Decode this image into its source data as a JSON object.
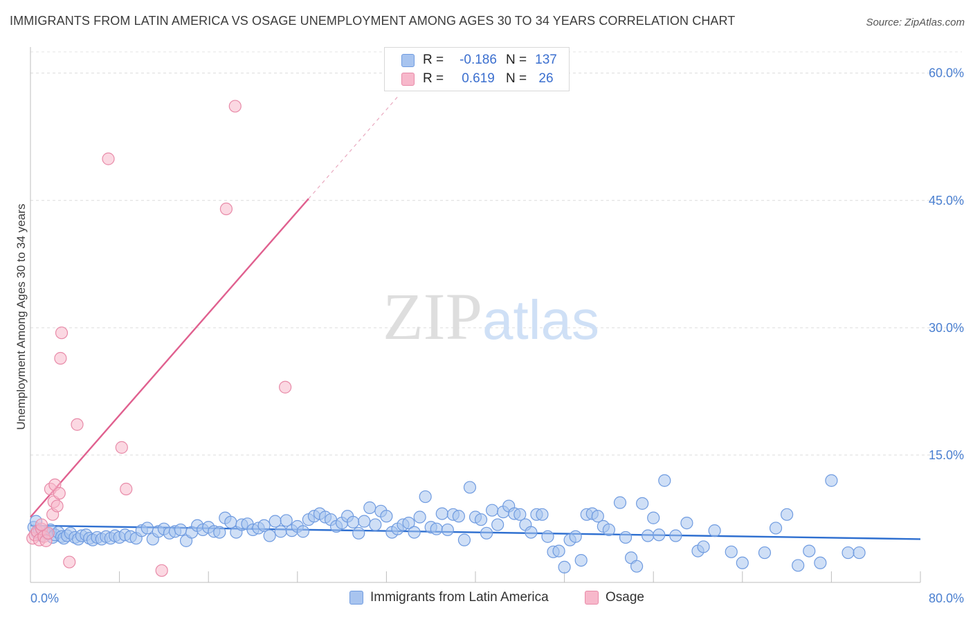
{
  "header": {
    "title": "IMMIGRANTS FROM LATIN AMERICA VS OSAGE UNEMPLOYMENT AMONG AGES 30 TO 34 YEARS CORRELATION CHART",
    "source": "Source: ZipAtlas.com"
  },
  "watermark": {
    "zip": "ZIP",
    "atlas": "atlas"
  },
  "legend": {
    "rows": [
      {
        "r_label": "R =",
        "r_value": "-0.186",
        "n_label": "N =",
        "n_value": "137",
        "color": "#a8c4ef",
        "stroke": "#6f9be0"
      },
      {
        "r_label": "R =",
        "r_value": "0.619",
        "n_label": "N =",
        "n_value": "26",
        "color": "#f7b8cb",
        "stroke": "#e88aa8"
      }
    ]
  },
  "bottom_legend": {
    "items": [
      {
        "label": "Immigrants from Latin America",
        "color": "#a8c4ef"
      },
      {
        "label": "Osage",
        "color": "#f7b8cb"
      }
    ]
  },
  "chart_data": {
    "type": "scatter",
    "title": "IMMIGRANTS FROM LATIN AMERICA VS OSAGE UNEMPLOYMENT AMONG AGES 30 TO 34 YEARS CORRELATION CHART",
    "xlabel": "",
    "ylabel": "Unemployment Among Ages 30 to 34 years",
    "xlim": [
      0,
      80
    ],
    "ylim": [
      0,
      62.5
    ],
    "x_tick_labels": [
      {
        "value": 0,
        "label": "0.0%"
      },
      {
        "value": 80,
        "label": "80.0%"
      }
    ],
    "y_tick_labels": [
      {
        "value": 15,
        "label": "15.0%"
      },
      {
        "value": 30,
        "label": "30.0%"
      },
      {
        "value": 45,
        "label": "45.0%"
      },
      {
        "value": 60,
        "label": "60.0%"
      }
    ],
    "x_minor_ticks": [
      8,
      16,
      24,
      32,
      40,
      48,
      56,
      64,
      72,
      80
    ],
    "series": [
      {
        "name": "Immigrants from Latin America",
        "color": "#a8c4ef",
        "stroke": "#6f9be0",
        "trend": {
          "x0": 0,
          "y0": 6.7,
          "x1": 80,
          "y1": 5.1,
          "color": "#2e6fd0"
        },
        "points": [
          [
            0.3,
            6.5
          ],
          [
            0.5,
            7.2
          ],
          [
            0.6,
            5.8
          ],
          [
            0.8,
            6.1
          ],
          [
            1.0,
            5.5
          ],
          [
            1.2,
            6.0
          ],
          [
            1.5,
            5.7
          ],
          [
            1.8,
            6.2
          ],
          [
            2.0,
            5.3
          ],
          [
            2.2,
            5.6
          ],
          [
            2.5,
            5.9
          ],
          [
            2.8,
            5.4
          ],
          [
            3.0,
            5.2
          ],
          [
            3.3,
            5.5
          ],
          [
            3.6,
            5.8
          ],
          [
            4.0,
            5.3
          ],
          [
            4.3,
            5.1
          ],
          [
            4.6,
            5.5
          ],
          [
            5.0,
            5.6
          ],
          [
            5.3,
            5.2
          ],
          [
            5.6,
            5.0
          ],
          [
            6.0,
            5.3
          ],
          [
            6.4,
            5.1
          ],
          [
            6.8,
            5.4
          ],
          [
            7.2,
            5.2
          ],
          [
            7.6,
            5.5
          ],
          [
            8.0,
            5.3
          ],
          [
            8.5,
            5.6
          ],
          [
            9.0,
            5.4
          ],
          [
            9.5,
            5.2
          ],
          [
            10.0,
            6.1
          ],
          [
            10.5,
            6.4
          ],
          [
            11.0,
            5.1
          ],
          [
            11.5,
            6.0
          ],
          [
            12.0,
            6.3
          ],
          [
            12.5,
            5.8
          ],
          [
            13.0,
            6.0
          ],
          [
            13.5,
            6.2
          ],
          [
            14.0,
            4.9
          ],
          [
            14.5,
            5.9
          ],
          [
            15.0,
            6.7
          ],
          [
            15.5,
            6.2
          ],
          [
            16.0,
            6.5
          ],
          [
            16.5,
            6.0
          ],
          [
            17.0,
            5.9
          ],
          [
            17.5,
            7.6
          ],
          [
            18.0,
            7.1
          ],
          [
            18.5,
            5.9
          ],
          [
            19.0,
            6.8
          ],
          [
            19.5,
            6.9
          ],
          [
            20.0,
            6.2
          ],
          [
            20.5,
            6.4
          ],
          [
            21.0,
            6.7
          ],
          [
            21.5,
            5.5
          ],
          [
            22.0,
            7.2
          ],
          [
            22.5,
            6.0
          ],
          [
            23.0,
            7.3
          ],
          [
            23.5,
            6.1
          ],
          [
            24.0,
            6.6
          ],
          [
            24.5,
            6.0
          ],
          [
            25.0,
            7.4
          ],
          [
            25.5,
            7.8
          ],
          [
            26.0,
            8.1
          ],
          [
            26.5,
            7.7
          ],
          [
            27.0,
            7.4
          ],
          [
            27.5,
            6.6
          ],
          [
            28.0,
            7.0
          ],
          [
            28.5,
            7.8
          ],
          [
            29.0,
            7.1
          ],
          [
            29.5,
            5.8
          ],
          [
            30.0,
            7.2
          ],
          [
            30.5,
            8.8
          ],
          [
            31.0,
            6.8
          ],
          [
            31.5,
            8.4
          ],
          [
            32.0,
            7.8
          ],
          [
            32.5,
            5.9
          ],
          [
            33.0,
            6.3
          ],
          [
            33.5,
            6.8
          ],
          [
            34.0,
            7.0
          ],
          [
            34.5,
            5.9
          ],
          [
            35.0,
            7.7
          ],
          [
            35.5,
            10.1
          ],
          [
            36.0,
            6.5
          ],
          [
            36.5,
            6.3
          ],
          [
            37.0,
            8.1
          ],
          [
            37.5,
            6.2
          ],
          [
            38.0,
            8.0
          ],
          [
            38.5,
            7.8
          ],
          [
            39.0,
            5.0
          ],
          [
            39.5,
            11.2
          ],
          [
            40.0,
            7.7
          ],
          [
            40.5,
            7.4
          ],
          [
            41.0,
            5.8
          ],
          [
            41.5,
            8.5
          ],
          [
            42.0,
            6.8
          ],
          [
            42.5,
            8.3
          ],
          [
            43.0,
            9.0
          ],
          [
            43.5,
            8.1
          ],
          [
            44.0,
            8.0
          ],
          [
            44.5,
            6.8
          ],
          [
            45.0,
            5.9
          ],
          [
            45.5,
            8.0
          ],
          [
            46.0,
            8.0
          ],
          [
            46.5,
            5.4
          ],
          [
            47.0,
            3.6
          ],
          [
            47.5,
            3.7
          ],
          [
            48.0,
            1.8
          ],
          [
            48.5,
            5.0
          ],
          [
            49.0,
            5.4
          ],
          [
            49.5,
            2.6
          ],
          [
            50.0,
            8.0
          ],
          [
            50.5,
            8.1
          ],
          [
            51.0,
            7.8
          ],
          [
            51.5,
            6.6
          ],
          [
            52.0,
            6.2
          ],
          [
            53.0,
            9.4
          ],
          [
            53.5,
            5.3
          ],
          [
            54.0,
            2.9
          ],
          [
            54.5,
            1.9
          ],
          [
            55.0,
            9.3
          ],
          [
            55.5,
            5.5
          ],
          [
            56.0,
            7.6
          ],
          [
            56.5,
            5.6
          ],
          [
            57.0,
            12.0
          ],
          [
            58.0,
            5.5
          ],
          [
            59.0,
            7.0
          ],
          [
            60.0,
            3.7
          ],
          [
            60.5,
            4.2
          ],
          [
            61.5,
            6.1
          ],
          [
            63.0,
            3.6
          ],
          [
            64.0,
            2.3
          ],
          [
            66.0,
            3.5
          ],
          [
            67.0,
            6.4
          ],
          [
            68.0,
            8.0
          ],
          [
            69.0,
            2.0
          ],
          [
            70.0,
            3.7
          ],
          [
            71.0,
            2.3
          ],
          [
            72.0,
            12.0
          ],
          [
            73.5,
            3.5
          ],
          [
            74.5,
            3.5
          ]
        ]
      },
      {
        "name": "Osage",
        "color": "#f7b8cb",
        "stroke": "#e88aa8",
        "trend": {
          "x0": 0,
          "y0": 7.7,
          "x1": 25,
          "y1": 45.2,
          "dash_to_x": 33,
          "dash_to_y": 57.2,
          "color": "#e0608f"
        },
        "points": [
          [
            0.2,
            5.2
          ],
          [
            0.4,
            5.6
          ],
          [
            0.6,
            6.0
          ],
          [
            0.8,
            5.0
          ],
          [
            1.0,
            6.3
          ],
          [
            1.2,
            5.4
          ],
          [
            1.4,
            4.9
          ],
          [
            1.6,
            5.8
          ],
          [
            1.8,
            11.0
          ],
          [
            2.0,
            8.0
          ],
          [
            2.1,
            9.5
          ],
          [
            2.2,
            11.5
          ],
          [
            2.4,
            9.0
          ],
          [
            2.6,
            10.5
          ],
          [
            2.7,
            26.4
          ],
          [
            2.8,
            29.4
          ],
          [
            3.5,
            2.4
          ],
          [
            4.2,
            18.6
          ],
          [
            7.0,
            49.9
          ],
          [
            8.2,
            15.9
          ],
          [
            8.6,
            11.0
          ],
          [
            11.8,
            1.4
          ],
          [
            17.6,
            44.0
          ],
          [
            18.4,
            56.1
          ],
          [
            22.9,
            23.0
          ],
          [
            1.0,
            6.8
          ]
        ]
      }
    ]
  }
}
